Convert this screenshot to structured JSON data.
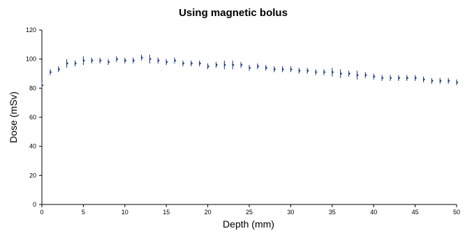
{
  "chart_data": {
    "type": "scatter",
    "title": "Using magnetic bolus",
    "xlabel": "Depth (mm)",
    "ylabel": "Dose (mSv)",
    "xlim": [
      0,
      50
    ],
    "ylim": [
      0,
      120
    ],
    "xticks": [
      "0",
      "5",
      "10",
      "15",
      "20",
      "25",
      "30",
      "35",
      "40",
      "45",
      "50"
    ],
    "yticks": [
      "0",
      "20",
      "40",
      "60",
      "80",
      "100",
      "120"
    ],
    "grid": false,
    "marker_color": "#1f3b73",
    "series": [
      {
        "x": [
          0,
          1,
          2,
          3,
          4,
          5,
          6,
          7,
          8,
          9,
          10,
          11,
          12,
          13,
          14,
          15,
          16,
          17,
          18,
          19,
          20,
          21,
          22,
          23,
          24,
          25,
          26,
          27,
          28,
          29,
          30,
          31,
          32,
          33,
          34,
          35,
          36,
          37,
          38,
          39,
          40,
          41,
          42,
          43,
          44,
          45,
          46,
          47,
          48,
          49,
          50
        ],
        "values": [
          82,
          91,
          93,
          97,
          97,
          99,
          99,
          99,
          98,
          100,
          99,
          99,
          101,
          100,
          99,
          98,
          99,
          97,
          97,
          97,
          95,
          96,
          96,
          96,
          96,
          94,
          95,
          94,
          93,
          93,
          93,
          92,
          92,
          91,
          91,
          91,
          90,
          90,
          89,
          89,
          88,
          87,
          87,
          87,
          87,
          87,
          86,
          85,
          85,
          85,
          84
        ],
        "errors": [
          2,
          2,
          2,
          3,
          2,
          3,
          2,
          2,
          2,
          2,
          2,
          2,
          2,
          3,
          2,
          2,
          2,
          2,
          2,
          2,
          2,
          2,
          3,
          3,
          2,
          2,
          2,
          2,
          2,
          2,
          2,
          2,
          2,
          2,
          2,
          3,
          3,
          2,
          3,
          2,
          2,
          2,
          2,
          2,
          2,
          2,
          2,
          2,
          2,
          2,
          2
        ]
      }
    ]
  }
}
